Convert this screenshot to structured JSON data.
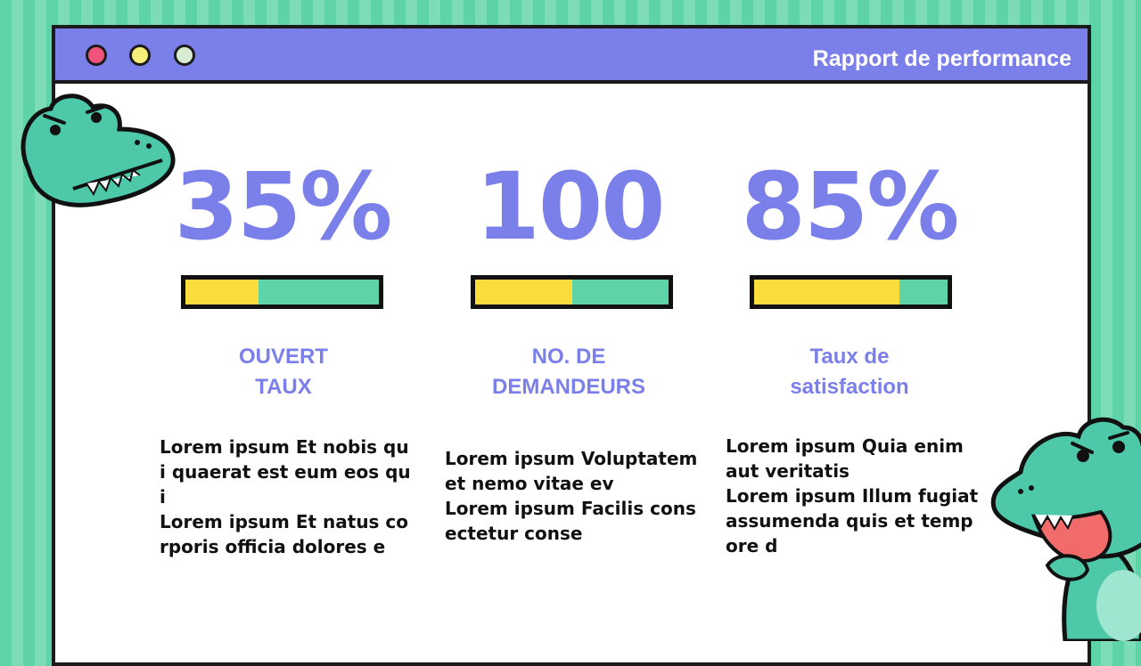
{
  "window": {
    "title": "Rapport de performance",
    "controls": [
      "close",
      "minimize",
      "maximize"
    ]
  },
  "stats": [
    {
      "value": "35%",
      "progress": 0.38,
      "label_line1": "OUVERT",
      "label_line2": "TAUX",
      "text_line1": "Lorem ipsum Et nobis qui quaerat est eum eos qui",
      "text_line2": "Lorem ipsum Et natus corporis officia dolores e"
    },
    {
      "value": "100",
      "progress": 0.5,
      "label_line1": "NO. DE",
      "label_line2": "DEMANDEURS",
      "text_line1": "Lorem ipsum Voluptatem et nemo vitae ev",
      "text_line2": "Lorem ipsum Facilis consectetur conse"
    },
    {
      "value": "85%",
      "progress": 0.75,
      "label_line1": "Taux de",
      "label_line2": "satisfaction",
      "text_line1": "Lorem ipsum Quia enim aut veritatis",
      "text_line2": "Lorem ipsum Illum fugiat assumenda quis et tempore d"
    }
  ],
  "colors": {
    "accent": "#7b7fea",
    "background_green": "#5fd3a8",
    "bar_yellow": "#fbdd3d",
    "bar_green": "#5fd3a8",
    "dot_red": "#f2537a",
    "dot_yellow": "#f7ee7a",
    "dot_green": "#d8ecd2"
  },
  "decorations": [
    "crocodile-head-illustration",
    "crocodile-character-illustration"
  ]
}
